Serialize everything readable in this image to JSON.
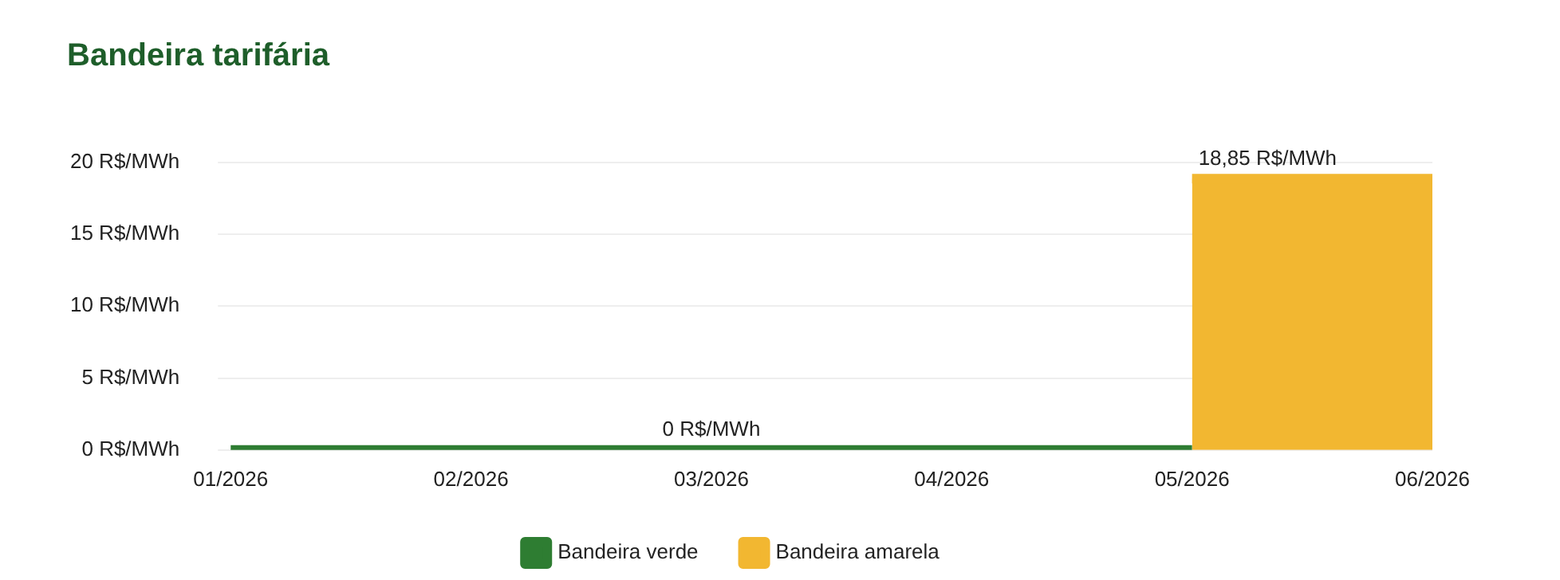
{
  "chart_data": {
    "type": "area",
    "title": "Bandeira tarifária",
    "categories": [
      "01/2026",
      "02/2026",
      "03/2026",
      "04/2026",
      "05/2026",
      "06/2026"
    ],
    "series": [
      {
        "name": "Bandeira verde",
        "type": "line",
        "color": "#2e7d32",
        "values": [
          0,
          0,
          0,
          0,
          0,
          null
        ],
        "value_labels": [
          null,
          null,
          "0 R$/MWh",
          null,
          null,
          null
        ]
      },
      {
        "name": "Bandeira amarela",
        "color": "#f2b731",
        "values": [
          null,
          null,
          null,
          null,
          18.85,
          18.85
        ],
        "value_labels": [
          null,
          null,
          null,
          null,
          "18,85 R$/MWh",
          null
        ]
      }
    ],
    "ylim": [
      0,
      20
    ],
    "yticks": [
      {
        "value": 0,
        "label": "0 R$/MWh"
      },
      {
        "value": 5,
        "label": "5 R$/MWh"
      },
      {
        "value": 10,
        "label": "10 R$/MWh"
      },
      {
        "value": 15,
        "label": "15 R$/MWh"
      },
      {
        "value": 20,
        "label": "20 R$/MWh"
      }
    ],
    "grid": "y",
    "legend": "bottom"
  }
}
